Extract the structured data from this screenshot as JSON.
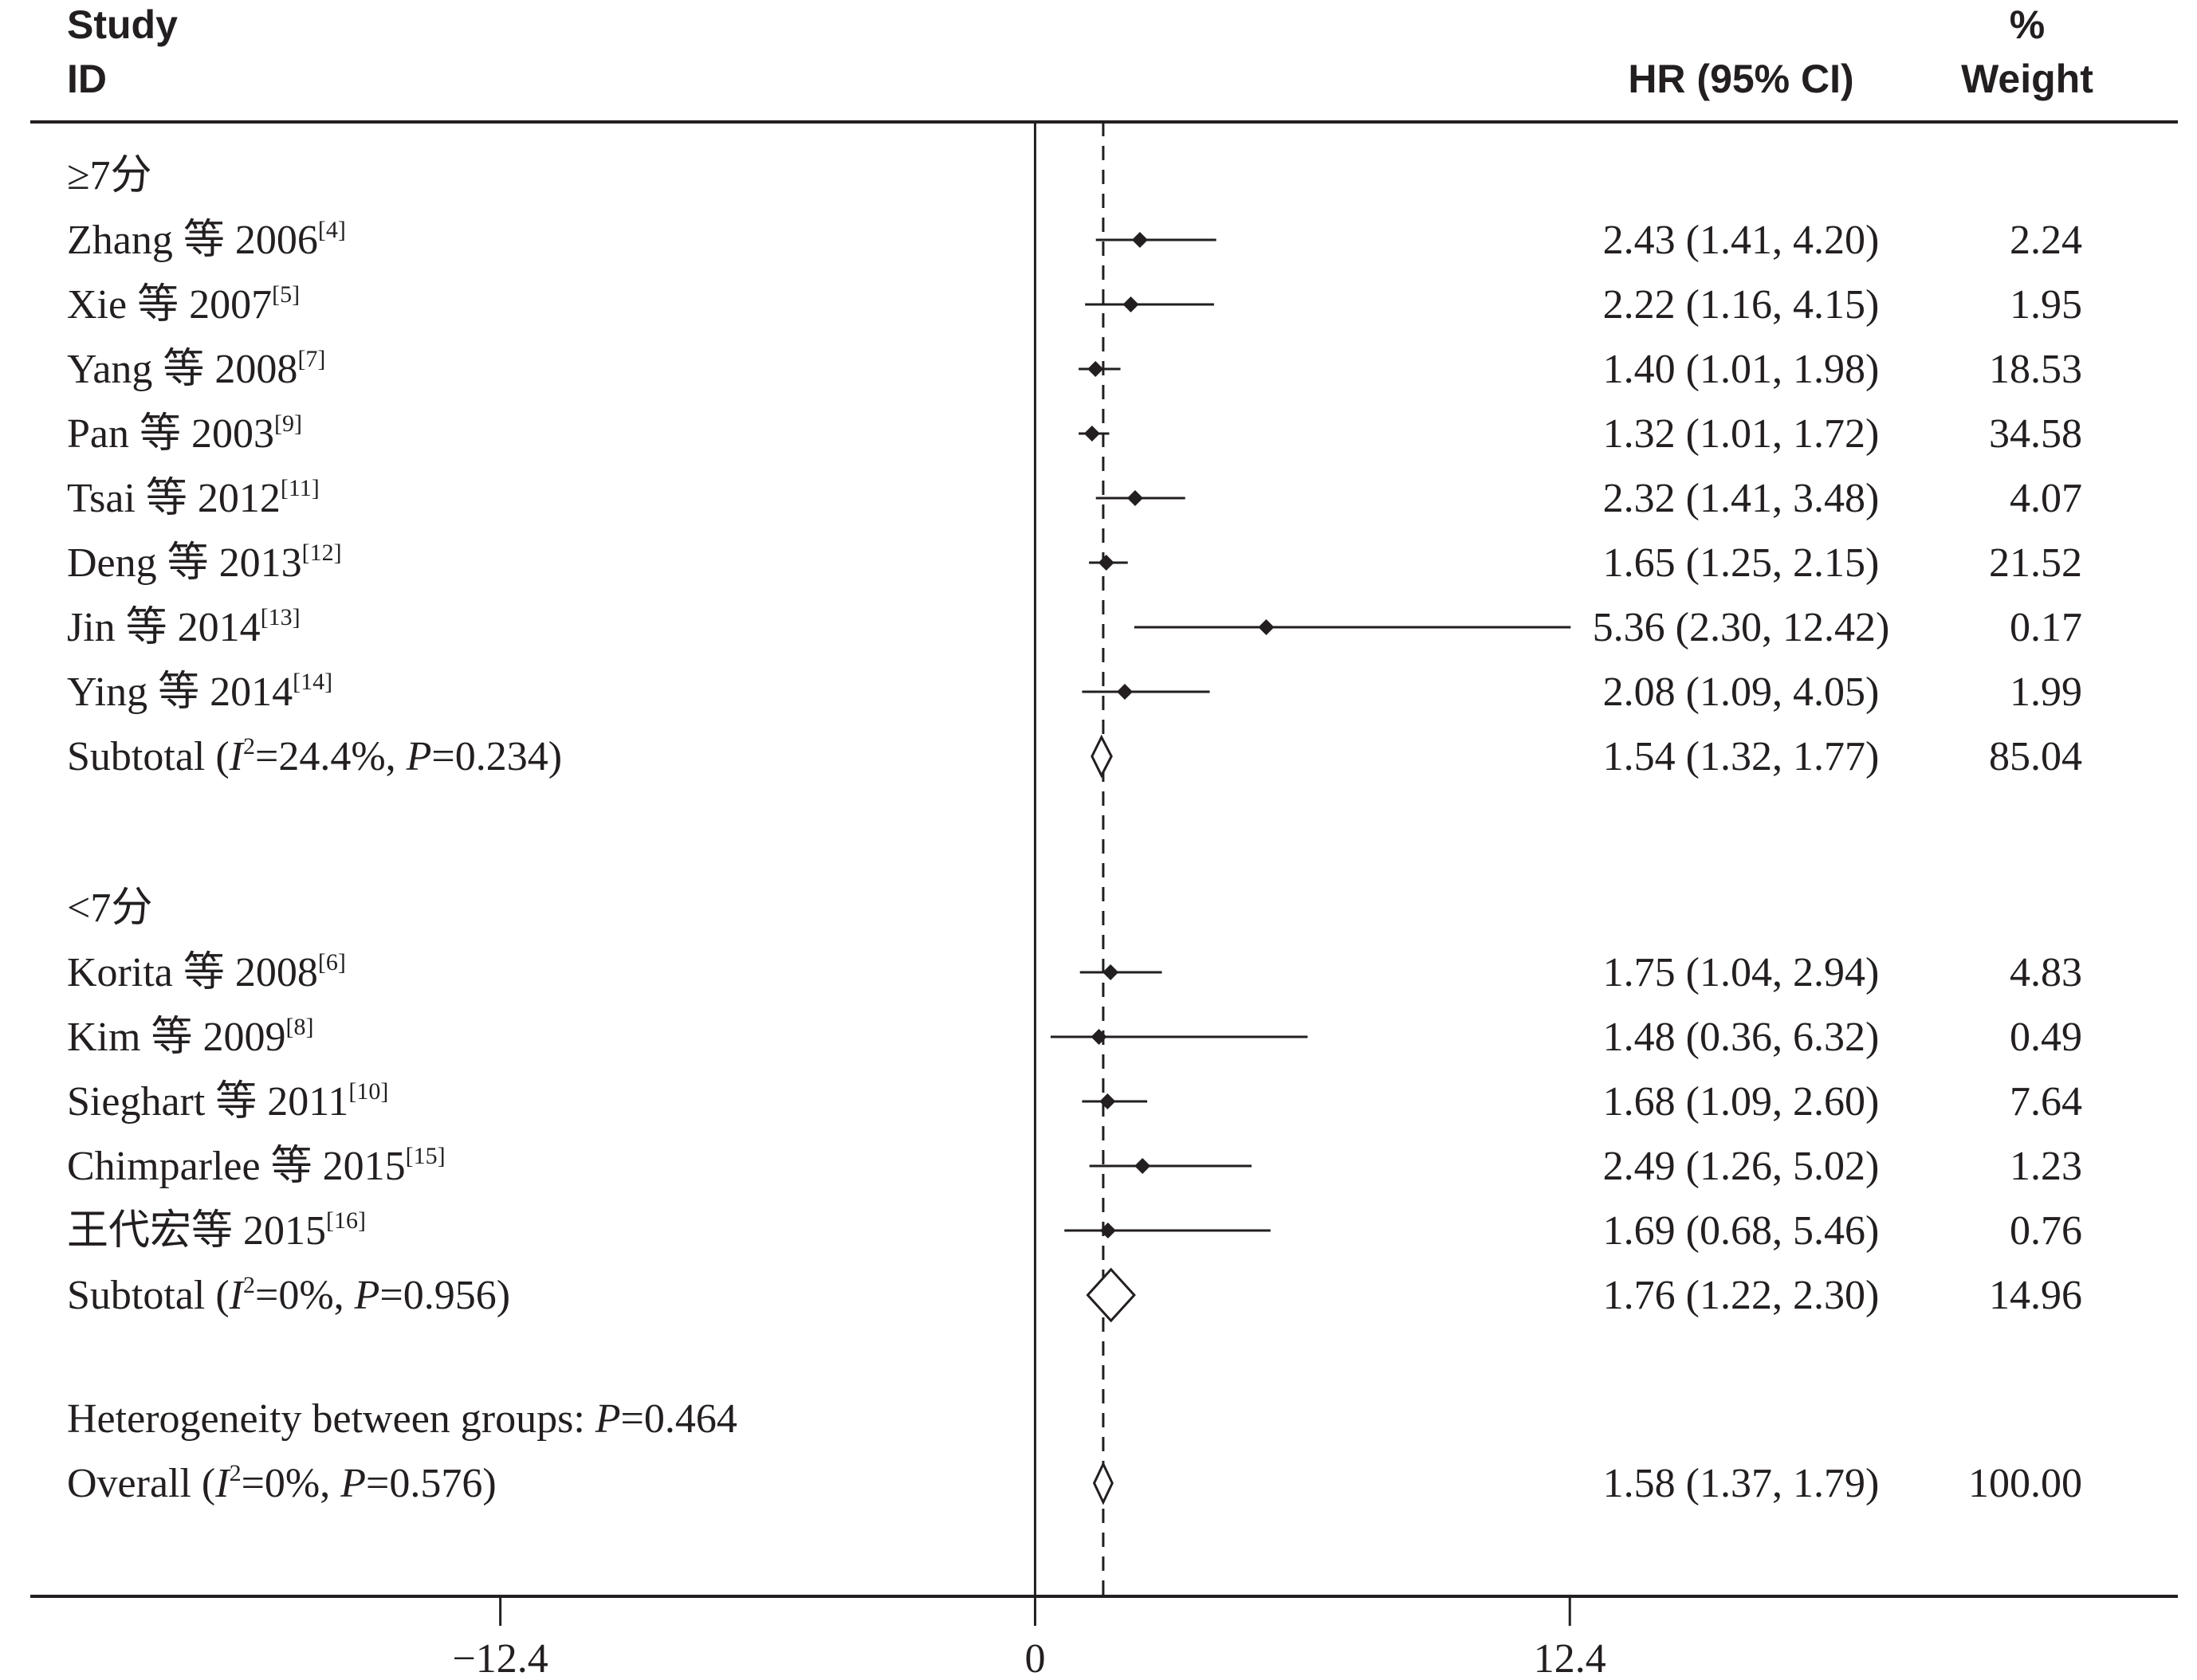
{
  "header": {
    "study_line1": "Study",
    "study_line2": "ID",
    "hr_label": "HR (95% CI)",
    "weight_line1": "%",
    "weight_line2": "Weight"
  },
  "axis": {
    "ticks": [
      -12.4,
      0,
      12.4
    ],
    "tick_labels": [
      "−12.4",
      "0",
      "12.4"
    ],
    "xlim": [
      -23.3,
      26.5
    ],
    "null_line": 0,
    "overall_line": 1.58
  },
  "chart_data": {
    "type": "forest",
    "measure": "HR (95% CI)",
    "groups": [
      {
        "label": "≥7分",
        "studies": [
          {
            "name": "Zhang 等 2006",
            "ref": "[4]",
            "hr": 2.43,
            "lo": 1.41,
            "hi": 4.2,
            "ci_text": "2.43 (1.41, 4.20)",
            "weight": "2.24"
          },
          {
            "name": "Xie 等 2007",
            "ref": "[5]",
            "hr": 2.22,
            "lo": 1.16,
            "hi": 4.15,
            "ci_text": "2.22 (1.16, 4.15)",
            "weight": "1.95"
          },
          {
            "name": "Yang 等 2008",
            "ref": "[7]",
            "hr": 1.4,
            "lo": 1.01,
            "hi": 1.98,
            "ci_text": "1.40 (1.01, 1.98)",
            "weight": "18.53"
          },
          {
            "name": "Pan 等 2003",
            "ref": "[9]",
            "hr": 1.32,
            "lo": 1.01,
            "hi": 1.72,
            "ci_text": "1.32 (1.01, 1.72)",
            "weight": "34.58"
          },
          {
            "name": "Tsai 等 2012",
            "ref": "[11]",
            "hr": 2.32,
            "lo": 1.41,
            "hi": 3.48,
            "ci_text": "2.32 (1.41, 3.48)",
            "weight": "4.07"
          },
          {
            "name": "Deng 等 2013",
            "ref": "[12]",
            "hr": 1.65,
            "lo": 1.25,
            "hi": 2.15,
            "ci_text": "1.65 (1.25, 2.15)",
            "weight": "21.52"
          },
          {
            "name": "Jin 等 2014",
            "ref": "[13]",
            "hr": 5.36,
            "lo": 2.3,
            "hi": 12.42,
            "ci_text": "5.36 (2.30, 12.42)",
            "weight": "0.17"
          },
          {
            "name": "Ying 等 2014",
            "ref": "[14]",
            "hr": 2.08,
            "lo": 1.09,
            "hi": 4.05,
            "ci_text": "2.08 (1.09, 4.05)",
            "weight": "1.99"
          }
        ],
        "subtotal": {
          "label": "Subtotal",
          "i2": "=24.4%, ",
          "p": "=0.234)",
          "hr": 1.54,
          "lo": 1.32,
          "hi": 1.77,
          "ci_text": "1.54 (1.32, 1.77)",
          "weight": "85.04"
        }
      },
      {
        "label": "<7分",
        "studies": [
          {
            "name": "Korita 等 2008",
            "ref": "[6]",
            "hr": 1.75,
            "lo": 1.04,
            "hi": 2.94,
            "ci_text": "1.75 (1.04, 2.94)",
            "weight": "4.83"
          },
          {
            "name": "Kim 等 2009",
            "ref": "[8]",
            "hr": 1.48,
            "lo": 0.36,
            "hi": 6.32,
            "ci_text": "1.48 (0.36, 6.32)",
            "weight": "0.49"
          },
          {
            "name": "Sieghart 等 2011",
            "ref": "[10]",
            "hr": 1.68,
            "lo": 1.09,
            "hi": 2.6,
            "ci_text": "1.68 (1.09, 2.60)",
            "weight": "7.64"
          },
          {
            "name": "Chimparlee 等 2015",
            "ref": "[15]",
            "hr": 2.49,
            "lo": 1.26,
            "hi": 5.02,
            "ci_text": "2.49 (1.26, 5.02)",
            "weight": "1.23"
          },
          {
            "name": "王代宏等 2015",
            "ref": "[16]",
            "hr": 1.69,
            "lo": 0.68,
            "hi": 5.46,
            "ci_text": "1.69 (0.68, 5.46)",
            "weight": "0.76"
          }
        ],
        "subtotal": {
          "label": "Subtotal",
          "i2": "=0%, ",
          "p": "=0.956)",
          "hr": 1.76,
          "lo": 1.22,
          "hi": 2.3,
          "ci_text": "1.76 (1.22, 2.30)",
          "weight": "14.96"
        }
      }
    ],
    "heterogeneity": {
      "label": "Heterogeneity between groups: ",
      "p": "=0.464"
    },
    "overall": {
      "label": "Overall",
      "i2": "=0%, ",
      "p": "=0.576)",
      "hr": 1.58,
      "lo": 1.37,
      "hi": 1.79,
      "ci_text": "1.58 (1.37, 1.79)",
      "weight": "100.00"
    }
  }
}
